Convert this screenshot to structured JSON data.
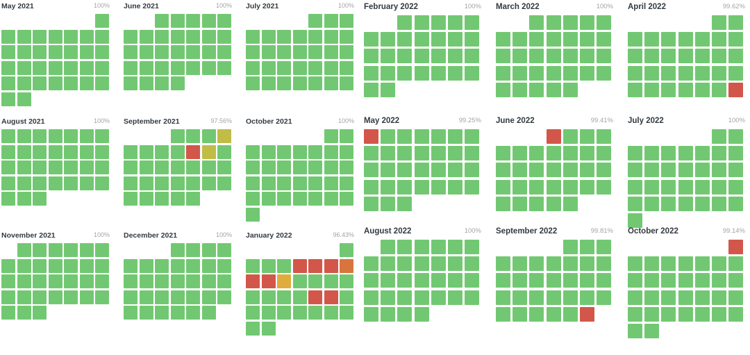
{
  "legend_colors": {
    "green": "#72c872",
    "red": "#d2574a",
    "orange": "#d8753d",
    "amber": "#e0ac3c",
    "olive": "#c0bd47"
  },
  "months": [
    {
      "title": "May 2021",
      "uptime": "100%",
      "first_weekday": 6,
      "days": 31,
      "status": {}
    },
    {
      "title": "June 2021",
      "uptime": "100%",
      "first_weekday": 2,
      "days": 30,
      "status": {}
    },
    {
      "title": "July 2021",
      "uptime": "100%",
      "first_weekday": 4,
      "days": 31,
      "status": {}
    },
    {
      "title": "August 2021",
      "uptime": "100%",
      "first_weekday": 0,
      "days": 31,
      "status": {}
    },
    {
      "title": "September 2021",
      "uptime": "97.56%",
      "first_weekday": 3,
      "days": 30,
      "status": {
        "4": "olive",
        "9": "red",
        "10": "olive"
      }
    },
    {
      "title": "October 2021",
      "uptime": "100%",
      "first_weekday": 5,
      "days": 31,
      "status": {}
    },
    {
      "title": "November 2021",
      "uptime": "100%",
      "first_weekday": 1,
      "days": 30,
      "status": {}
    },
    {
      "title": "December 2021",
      "uptime": "100%",
      "first_weekday": 3,
      "days": 31,
      "status": {}
    },
    {
      "title": "January 2022",
      "uptime": "96.43%",
      "first_weekday": 6,
      "days": 31,
      "status": {
        "5": "red",
        "6": "red",
        "7": "red",
        "8": "orange",
        "9": "red",
        "10": "red",
        "11": "amber",
        "20": "red",
        "21": "red"
      }
    },
    {
      "title": "February 2022",
      "uptime": "100%",
      "first_weekday": 2,
      "days": 28,
      "status": {}
    },
    {
      "title": "March 2022",
      "uptime": "100%",
      "first_weekday": 2,
      "days": 31,
      "status": {}
    },
    {
      "title": "April 2022",
      "uptime": "99.62%",
      "first_weekday": 5,
      "days": 30,
      "status": {
        "30": "red"
      }
    },
    {
      "title": "May 2022",
      "uptime": "99.25%",
      "first_weekday": 0,
      "days": 31,
      "status": {
        "1": "red"
      }
    },
    {
      "title": "June 2022",
      "uptime": "99.41%",
      "first_weekday": 3,
      "days": 30,
      "status": {
        "1": "red"
      }
    },
    {
      "title": "July 2022",
      "uptime": "100%",
      "first_weekday": 5,
      "days": 31,
      "status": {}
    },
    {
      "title": "August 2022",
      "uptime": "100%",
      "first_weekday": 1,
      "days": 31,
      "status": {}
    },
    {
      "title": "September 2022",
      "uptime": "99.81%",
      "first_weekday": 4,
      "days": 30,
      "status": {
        "30": "red"
      }
    },
    {
      "title": "October 2022",
      "uptime": "99.14%",
      "first_weekday": 6,
      "days": 31,
      "status": {
        "1": "red"
      }
    }
  ]
}
